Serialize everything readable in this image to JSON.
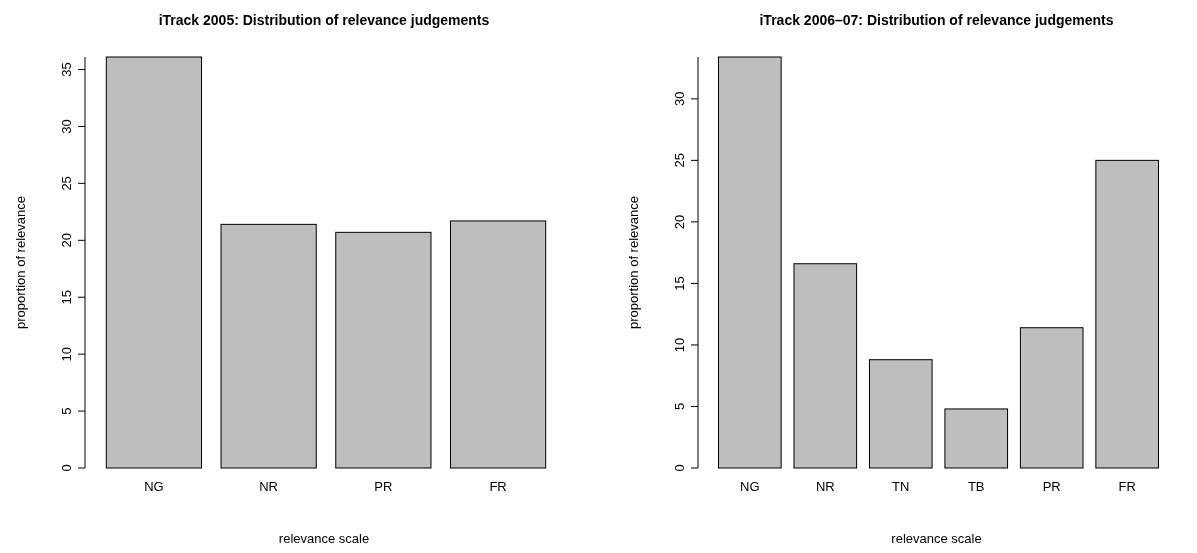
{
  "chart_data": [
    {
      "type": "bar",
      "title": "iTrack 2005: Distribution of relevance judgements",
      "xlabel": "relevance scale",
      "ylabel": "proportion of relevance",
      "categories": [
        "NG",
        "NR",
        "PR",
        "FR"
      ],
      "values": [
        36.1,
        21.4,
        20.7,
        21.7
      ],
      "color": "#bebebe",
      "ylim": [
        0,
        36.1
      ],
      "yticks": [
        0,
        5,
        10,
        15,
        20,
        25,
        30,
        35
      ]
    },
    {
      "type": "bar",
      "title": "iTrack 2006–07: Distribution of relevance judgements",
      "xlabel": "relevance scale",
      "ylabel": "proportion of relevance",
      "categories": [
        "NG",
        "NR",
        "TN",
        "TB",
        "PR",
        "FR"
      ],
      "values": [
        33.4,
        16.6,
        8.8,
        4.8,
        11.4,
        25.0
      ],
      "color": "#bebebe",
      "ylim": [
        0,
        33.4
      ],
      "yticks": [
        0,
        5,
        10,
        15,
        20,
        25,
        30
      ]
    }
  ]
}
